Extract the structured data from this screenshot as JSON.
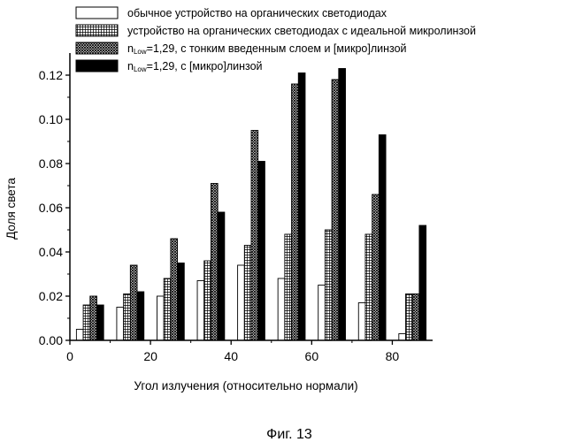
{
  "chart_data": {
    "type": "bar",
    "xlabel": "Угол излучения (относительно нормали)",
    "ylabel": "Доля света",
    "xlim": [
      0,
      90
    ],
    "ylim": [
      0,
      0.13
    ],
    "xticks": [
      "0",
      "20",
      "40",
      "60",
      "80"
    ],
    "xtick_values": [
      0,
      20,
      40,
      60,
      80
    ],
    "yticks": [
      "0.00",
      "0.02",
      "0.04",
      "0.06",
      "0.08",
      "0.10",
      "0.12"
    ],
    "ytick_values": [
      0,
      0.02,
      0.04,
      0.06,
      0.08,
      0.1,
      0.12
    ],
    "group_centers": [
      5,
      15,
      25,
      35,
      45,
      55,
      65,
      75,
      85
    ],
    "legend_position": "top",
    "series": [
      {
        "name": "обычное устройство на органических светодиодах",
        "pattern": "none",
        "values": [
          0.005,
          0.015,
          0.02,
          0.027,
          0.034,
          0.028,
          0.025,
          0.017,
          0.003
        ]
      },
      {
        "name": "устройство на органических светодиодах с идеальной микролинзой",
        "pattern": "grid",
        "values": [
          0.016,
          0.021,
          0.028,
          0.036,
          0.043,
          0.048,
          0.05,
          0.048,
          0.021
        ]
      },
      {
        "name_prefix": "n",
        "name_sub": "Low",
        "name_suffix": "=1,29, с тонким введенным слоем и [микро]линзой",
        "pattern": "crosshatch",
        "values": [
          0.02,
          0.034,
          0.046,
          0.071,
          0.095,
          0.116,
          0.118,
          0.066,
          0.021
        ]
      },
      {
        "name_prefix": "n",
        "name_sub": "Low",
        "name_suffix": "=1,29, с [микро]линзой",
        "pattern": "solid",
        "values": [
          0.016,
          0.022,
          0.035,
          0.058,
          0.081,
          0.121,
          0.123,
          0.093,
          0.052
        ]
      }
    ]
  },
  "caption": "Фиг. 13"
}
